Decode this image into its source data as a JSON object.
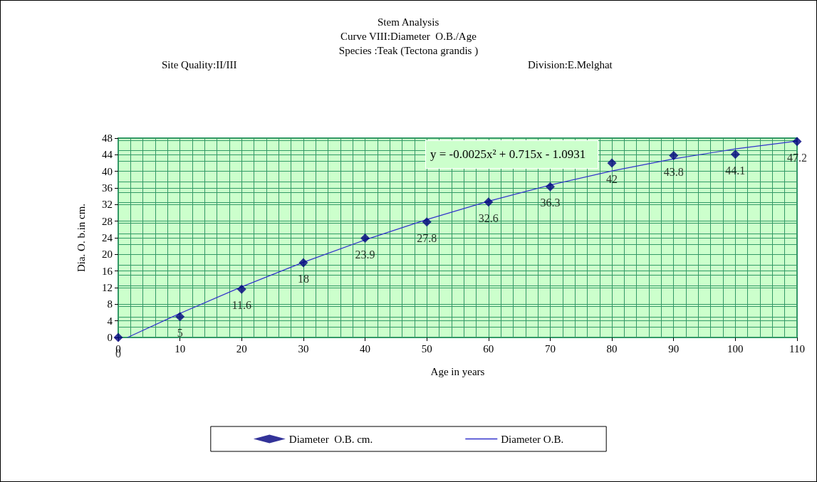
{
  "chart_data": {
    "type": "scatter",
    "title": "Stem Analysis",
    "subtitle": "Curve VIII:Diameter  O.B./Age\nSpecies :Teak (Tectona grandis )",
    "xlabel": "Age in years",
    "ylabel": "Dia. O. b.in cm.",
    "annotations": [
      "Site Quality:II/III",
      "Division:E.Melghat",
      "y = -0.0025x² + 0.715x - 1.0931"
    ],
    "xlim": [
      0,
      110
    ],
    "xticks": [
      0,
      10,
      20,
      30,
      40,
      50,
      60,
      70,
      80,
      90,
      100,
      110
    ],
    "ylim": [
      0,
      48
    ],
    "yticks": [
      0,
      4,
      8,
      12,
      16,
      20,
      24,
      28,
      32,
      36,
      40,
      44,
      48
    ],
    "grid": true,
    "legend": "bottom",
    "marker": "diamond",
    "series": [
      {
        "name": "Diameter  O.B. cm.",
        "color": "#000080",
        "x": [
          0,
          10,
          20,
          30,
          40,
          50,
          60,
          70,
          80,
          90,
          100,
          110
        ],
        "values": [
          0,
          5,
          11.6,
          18,
          23.9,
          27.8,
          32.6,
          36.3,
          42,
          43.8,
          44.1,
          47.2
        ],
        "value_labels": [
          "0",
          "5",
          "11.6",
          "18",
          "23.9",
          "27.8",
          "32.6",
          "36.3",
          "42",
          "43.8",
          "44.1",
          "47.2"
        ]
      },
      {
        "name": "Diameter O.B.",
        "type": "line",
        "color": "#3333cc",
        "marker": "none",
        "line_style": "solid",
        "x": [
          1.5,
          10,
          20,
          30,
          40,
          50,
          60,
          70,
          80,
          90,
          100,
          110
        ],
        "values": [
          0,
          5.8,
          12.2,
          18.1,
          23.5,
          28.4,
          32.8,
          36.7,
          40.1,
          43,
          45.4,
          47.3
        ]
      }
    ]
  }
}
